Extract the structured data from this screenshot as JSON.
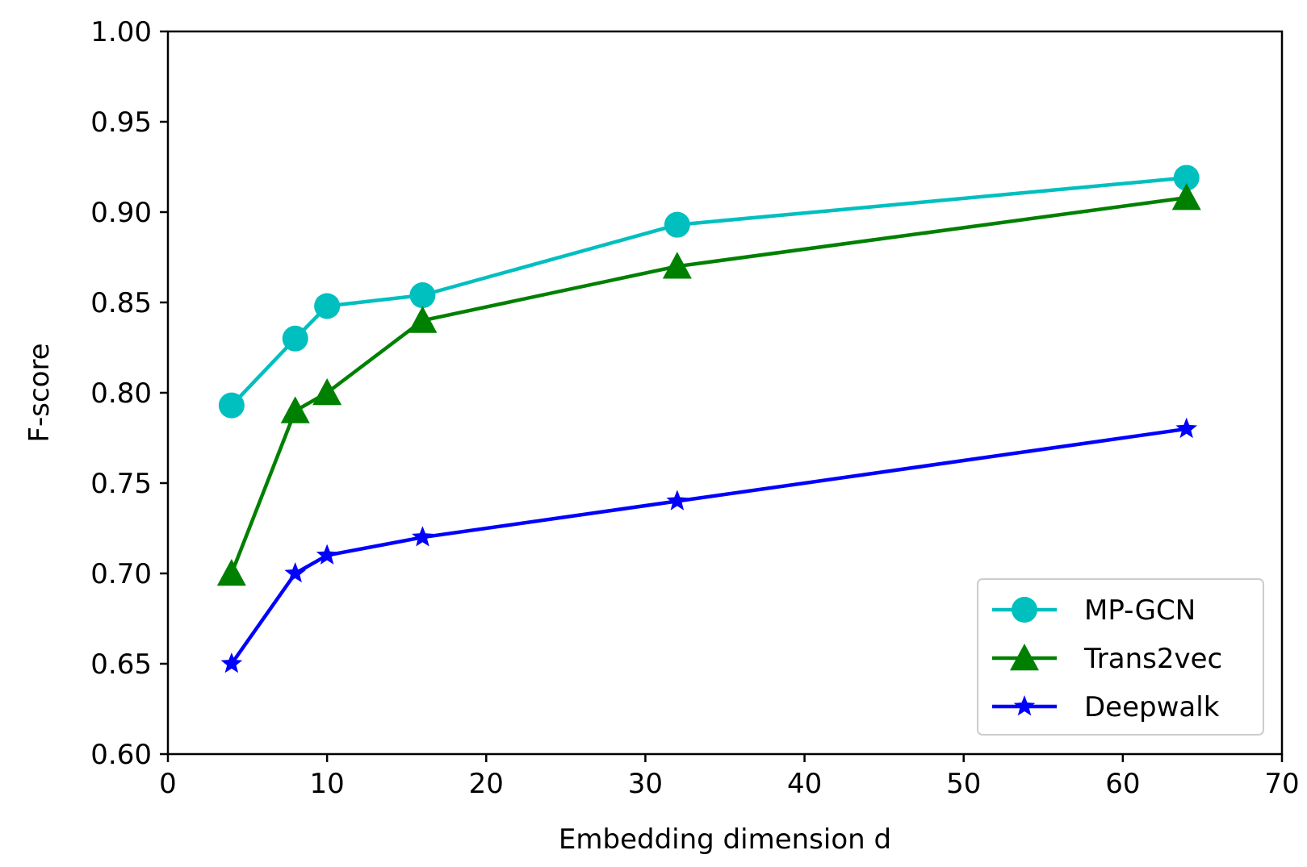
{
  "chart_data": {
    "type": "line",
    "title": "",
    "xlabel": "Embedding dimension d",
    "ylabel": "F-score",
    "xlim": [
      0,
      70
    ],
    "ylim": [
      0.6,
      1.0
    ],
    "xticks": [
      0,
      10,
      20,
      30,
      40,
      50,
      60,
      70
    ],
    "xtick_labels": [
      "0",
      "10",
      "20",
      "30",
      "40",
      "50",
      "60",
      "70"
    ],
    "yticks": [
      0.6,
      0.65,
      0.7,
      0.75,
      0.8,
      0.85,
      0.9,
      0.95,
      1.0
    ],
    "ytick_labels": [
      "0.60",
      "0.65",
      "0.70",
      "0.75",
      "0.80",
      "0.85",
      "0.90",
      "0.95",
      "1.00"
    ],
    "grid": false,
    "legend_position": "bottom-right",
    "x": [
      4,
      8,
      10,
      16,
      32,
      64
    ],
    "series": [
      {
        "name": "MP-GCN",
        "color": "#00bfbf",
        "marker": "circle",
        "values": [
          0.793,
          0.83,
          0.848,
          0.854,
          0.893,
          0.919
        ]
      },
      {
        "name": "Trans2vec",
        "color": "#008000",
        "marker": "triangle",
        "values": [
          0.7,
          0.79,
          0.8,
          0.84,
          0.87,
          0.908
        ]
      },
      {
        "name": "Deepwalk",
        "color": "#0000ff",
        "marker": "star",
        "values": [
          0.65,
          0.7,
          0.71,
          0.72,
          0.74,
          0.78
        ]
      }
    ]
  }
}
